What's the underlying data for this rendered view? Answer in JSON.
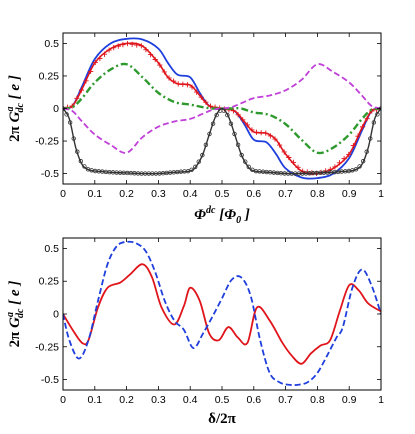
{
  "chart_data": [
    {
      "type": "line",
      "xlabel": "Φ^dc [Φ_0]",
      "ylabel": "2π G^a_dc [ e ]",
      "xlim": [
        0,
        1
      ],
      "ylim": [
        -0.58,
        0.58
      ],
      "xticks": [
        "0",
        "0.1",
        "0.2",
        "0.3",
        "0.4",
        "0.5",
        "0.6",
        "0.7",
        "0.8",
        "0.9",
        "1"
      ],
      "yticks": [
        "-0.5",
        "-0.25",
        "0",
        "0.25",
        "0.5"
      ],
      "grid": false,
      "series": [
        {
          "color": "#1f3fdd",
          "style": "solid",
          "x": [
            0,
            0.03,
            0.06,
            0.1,
            0.15,
            0.2,
            0.25,
            0.3,
            0.33,
            0.36,
            0.4,
            0.43,
            0.46,
            0.5,
            0.54,
            0.57,
            0.6,
            0.64,
            0.67,
            0.7,
            0.75,
            0.8,
            0.85,
            0.9,
            0.94,
            0.97,
            1
          ],
          "y": [
            0,
            0.02,
            0.17,
            0.38,
            0.5,
            0.535,
            0.53,
            0.46,
            0.35,
            0.26,
            0.24,
            0.12,
            0.02,
            0,
            -0.02,
            -0.12,
            -0.24,
            -0.26,
            -0.35,
            -0.46,
            -0.53,
            -0.535,
            -0.5,
            -0.38,
            -0.17,
            -0.02,
            0
          ]
        },
        {
          "color": "#e0151b",
          "style": "solid-plus",
          "x": [
            0,
            0.03,
            0.06,
            0.1,
            0.15,
            0.2,
            0.25,
            0.3,
            0.33,
            0.36,
            0.4,
            0.43,
            0.46,
            0.5,
            0.54,
            0.57,
            0.6,
            0.64,
            0.67,
            0.7,
            0.75,
            0.8,
            0.85,
            0.9,
            0.94,
            0.97,
            1
          ],
          "y": [
            0,
            0.02,
            0.15,
            0.35,
            0.46,
            0.5,
            0.48,
            0.35,
            0.24,
            0.19,
            0.18,
            0.1,
            0.02,
            0,
            -0.02,
            -0.1,
            -0.18,
            -0.19,
            -0.24,
            -0.35,
            -0.48,
            -0.5,
            -0.46,
            -0.35,
            -0.15,
            -0.02,
            0
          ]
        },
        {
          "color": "#2e9a2e",
          "style": "dashdot",
          "x": [
            0,
            0.03,
            0.06,
            0.1,
            0.15,
            0.2,
            0.25,
            0.3,
            0.35,
            0.4,
            0.44,
            0.47,
            0.5,
            0.53,
            0.56,
            0.6,
            0.65,
            0.7,
            0.75,
            0.8,
            0.85,
            0.9,
            0.94,
            0.97,
            1
          ],
          "y": [
            0,
            0.01,
            0.08,
            0.2,
            0.3,
            0.34,
            0.24,
            0.12,
            0.05,
            0.03,
            0.01,
            0,
            0,
            0,
            0,
            -0.03,
            -0.05,
            -0.12,
            -0.24,
            -0.34,
            -0.3,
            -0.2,
            -0.08,
            -0.01,
            0
          ]
        },
        {
          "color": "#c040d8",
          "style": "dashed",
          "x": [
            0,
            0.03,
            0.06,
            0.1,
            0.15,
            0.2,
            0.25,
            0.3,
            0.35,
            0.4,
            0.44,
            0.47,
            0.5,
            0.53,
            0.56,
            0.6,
            0.65,
            0.7,
            0.75,
            0.8,
            0.85,
            0.9,
            0.94,
            0.97,
            1
          ],
          "y": [
            0,
            -0.02,
            -0.1,
            -0.2,
            -0.28,
            -0.34,
            -0.22,
            -0.14,
            -0.1,
            -0.08,
            -0.04,
            -0.01,
            0,
            0.01,
            0.04,
            0.08,
            0.1,
            0.14,
            0.22,
            0.34,
            0.28,
            0.2,
            0.1,
            0.02,
            0
          ]
        },
        {
          "color": "#333333",
          "style": "solid-marker",
          "x": [
            0,
            0.02,
            0.04,
            0.06,
            0.08,
            0.1,
            0.15,
            0.2,
            0.25,
            0.3,
            0.35,
            0.4,
            0.42,
            0.44,
            0.46,
            0.48,
            0.5,
            0.52,
            0.54,
            0.56,
            0.58,
            0.6,
            0.65,
            0.7,
            0.75,
            0.8,
            0.85,
            0.9,
            0.92,
            0.94,
            0.96,
            0.98,
            1
          ],
          "y": [
            0,
            -0.08,
            -0.3,
            -0.43,
            -0.47,
            -0.48,
            -0.49,
            -0.495,
            -0.5,
            -0.5,
            -0.49,
            -0.48,
            -0.44,
            -0.35,
            -0.2,
            -0.06,
            0,
            -0.06,
            -0.2,
            -0.35,
            -0.44,
            -0.48,
            -0.49,
            -0.5,
            -0.5,
            -0.495,
            -0.49,
            -0.48,
            -0.47,
            -0.43,
            -0.3,
            -0.08,
            0
          ]
        }
      ]
    },
    {
      "type": "line",
      "xlabel": "δ/2π",
      "ylabel": "2π G^a_dc [ e ]",
      "xlim": [
        0,
        1
      ],
      "ylim": [
        -0.58,
        0.58
      ],
      "xticks": [
        "0",
        "0.1",
        "0.2",
        "0.3",
        "0.4",
        "0.5",
        "0.6",
        "0.7",
        "0.8",
        "0.9",
        "1"
      ],
      "yticks": [
        "-0.5",
        "-0.25",
        "0",
        "0.25",
        "0.5"
      ],
      "grid": false,
      "series": [
        {
          "color": "#e0151b",
          "style": "solid",
          "x": [
            0,
            0.03,
            0.06,
            0.08,
            0.11,
            0.14,
            0.18,
            0.21,
            0.25,
            0.28,
            0.31,
            0.35,
            0.38,
            0.4,
            0.43,
            0.46,
            0.49,
            0.52,
            0.55,
            0.58,
            0.61,
            0.65,
            0.69,
            0.72,
            0.75,
            0.78,
            0.81,
            0.84,
            0.87,
            0.9,
            0.93,
            0.96,
            1
          ],
          "y": [
            0,
            -0.12,
            -0.22,
            -0.2,
            0.05,
            0.2,
            0.24,
            0.3,
            0.38,
            0.28,
            0.05,
            -0.08,
            0.06,
            0.2,
            0.1,
            -0.15,
            -0.2,
            -0.1,
            -0.18,
            -0.22,
            0.05,
            -0.05,
            -0.22,
            -0.32,
            -0.38,
            -0.3,
            -0.24,
            -0.2,
            0.02,
            0.22,
            0.18,
            0.08,
            0.02
          ]
        },
        {
          "color": "#1f3fdd",
          "style": "dashed",
          "x": [
            0,
            0.02,
            0.05,
            0.08,
            0.11,
            0.14,
            0.17,
            0.2,
            0.23,
            0.26,
            0.29,
            0.32,
            0.35,
            0.38,
            0.41,
            0.44,
            0.47,
            0.5,
            0.53,
            0.56,
            0.59,
            0.62,
            0.65,
            0.68,
            0.71,
            0.74,
            0.77,
            0.8,
            0.83,
            0.86,
            0.88,
            0.91,
            0.94,
            0.97,
            1
          ],
          "y": [
            0,
            -0.2,
            -0.34,
            -0.2,
            0.1,
            0.38,
            0.52,
            0.55,
            0.54,
            0.48,
            0.32,
            0.1,
            -0.05,
            -0.12,
            -0.26,
            -0.15,
            -0.02,
            0.12,
            0.26,
            0.28,
            0.14,
            -0.2,
            -0.45,
            -0.52,
            -0.54,
            -0.54,
            -0.52,
            -0.45,
            -0.32,
            -0.18,
            -0.1,
            0.2,
            0.34,
            0.22,
            0
          ]
        }
      ]
    }
  ]
}
